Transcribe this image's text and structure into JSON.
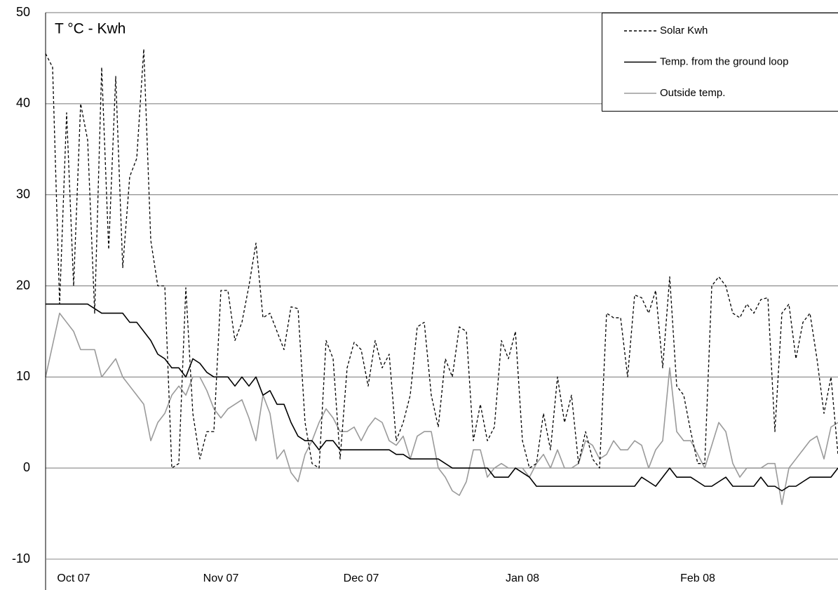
{
  "chart_data": {
    "type": "line",
    "title": "T °C - Kwh",
    "categories": [
      null,
      null,
      null,
      null,
      "Oct 07",
      null,
      null,
      null,
      null,
      null,
      null,
      null,
      null,
      null,
      null,
      null,
      null,
      null,
      null,
      null,
      null,
      null,
      null,
      null,
      null,
      "Nov 07",
      null,
      null,
      null,
      null,
      null,
      null,
      null,
      null,
      null,
      null,
      null,
      null,
      null,
      null,
      null,
      null,
      null,
      null,
      null,
      "Dec 07",
      null,
      null,
      null,
      null,
      null,
      null,
      null,
      null,
      null,
      null,
      null,
      null,
      null,
      null,
      null,
      null,
      null,
      null,
      null,
      null,
      null,
      null,
      "Jan 08",
      null,
      null,
      null,
      null,
      null,
      null,
      null,
      null,
      null,
      null,
      null,
      null,
      null,
      null,
      null,
      null,
      null,
      null,
      null,
      null,
      null,
      null,
      null,
      null,
      "Feb 08",
      null,
      null,
      null,
      null,
      null,
      null,
      null,
      null,
      null,
      null,
      null,
      null,
      null,
      null,
      null,
      null,
      null,
      null,
      null,
      null
    ],
    "series": [
      {
        "name": "Solar Kwh",
        "color": "#000000",
        "line_style": "dashed",
        "values": [
          45.5,
          44,
          18,
          39,
          20,
          40,
          36,
          17,
          44,
          24,
          43,
          22,
          32,
          34,
          46,
          25,
          20,
          20,
          0,
          0.5,
          19.8,
          6,
          1,
          4,
          4,
          19.5,
          19.5,
          14,
          16,
          20,
          24.7,
          16.5,
          17,
          15,
          13,
          17.7,
          17.5,
          5,
          0.5,
          0,
          14,
          12,
          1,
          11,
          13.8,
          13,
          9,
          14,
          11,
          12.5,
          3,
          5,
          8,
          15.5,
          16,
          8,
          4.5,
          12,
          10,
          15.5,
          15,
          3,
          7,
          3,
          4.5,
          14,
          12,
          15,
          3,
          0,
          0.5,
          6,
          2,
          10,
          5,
          8,
          0.5,
          4,
          1,
          0,
          17,
          16.5,
          16.5,
          10,
          19,
          18.7,
          17,
          19.5,
          11,
          21,
          9,
          8,
          4,
          0.5,
          0.5,
          20,
          21,
          20,
          17,
          16.5,
          18,
          17,
          18.5,
          18.7,
          4,
          17,
          18,
          12,
          16,
          17,
          12,
          6,
          10,
          1.5
        ]
      },
      {
        "name": "Temp. from the ground loop",
        "color": "#000000",
        "line_style": "solid",
        "values": [
          18,
          18,
          18,
          18,
          18,
          18,
          18,
          17.5,
          17,
          17,
          17,
          17,
          16,
          16,
          15,
          14,
          12.5,
          12,
          11,
          11,
          10,
          12,
          11.5,
          10.5,
          10,
          10,
          10,
          9,
          10,
          9,
          10,
          8,
          8.5,
          7,
          7,
          5,
          3.5,
          3,
          3,
          2,
          3,
          3,
          2,
          2,
          2,
          2,
          2,
          2,
          2,
          2,
          1.5,
          1.5,
          1,
          1,
          1,
          1,
          1,
          0.5,
          0,
          0,
          0,
          0,
          0,
          0,
          -1,
          -1,
          -1,
          0,
          -0.5,
          -1,
          -2,
          -2,
          -2,
          -2,
          -2,
          -2,
          -2,
          -2,
          -2,
          -2,
          -2,
          -2,
          -2,
          -2,
          -2,
          -1,
          -1.5,
          -2,
          -1,
          0,
          -1,
          -1,
          -1,
          -1.5,
          -2,
          -2,
          -1.5,
          -1,
          -2,
          -2,
          -2,
          -2,
          -1,
          -2,
          -2,
          -2.5,
          -2,
          -2,
          -1.5,
          -1,
          -1,
          -1,
          -1,
          0
        ]
      },
      {
        "name": "Outside temp.",
        "color": "#9a9a9a",
        "line_style": "solid",
        "values": [
          10,
          13.5,
          17,
          16,
          15,
          13,
          13,
          13,
          10,
          11,
          12,
          10,
          9,
          8,
          7,
          3,
          5,
          6,
          8,
          9,
          8,
          10,
          10,
          8.5,
          6.5,
          5.5,
          6.5,
          7,
          7.5,
          5.5,
          3,
          8,
          6,
          1,
          2,
          -0.5,
          -1.5,
          1.5,
          3,
          5,
          6.5,
          5.5,
          4,
          4,
          4.5,
          3,
          4.5,
          5.5,
          5,
          3,
          2.5,
          3.5,
          1,
          3.5,
          4,
          4,
          0,
          -1,
          -2.5,
          -3,
          -1.5,
          2,
          2,
          -1,
          0,
          0.5,
          0,
          0,
          0,
          -1,
          0.5,
          1.5,
          0,
          2,
          0,
          0,
          0.5,
          3,
          2.5,
          1,
          1.5,
          3,
          2,
          2,
          3,
          2.5,
          0,
          2,
          3,
          11,
          4,
          3,
          3,
          1.5,
          0,
          2.5,
          5,
          4,
          0.5,
          -1,
          0,
          0,
          0,
          0.5,
          0.5,
          -4,
          0,
          1,
          2,
          3,
          3.5,
          1,
          4.5,
          5
        ]
      }
    ],
    "ylim": [
      -10,
      50
    ],
    "yticks": [
      -10,
      0,
      10,
      20,
      30,
      40,
      50
    ],
    "grid": true,
    "legend": "upper right"
  }
}
